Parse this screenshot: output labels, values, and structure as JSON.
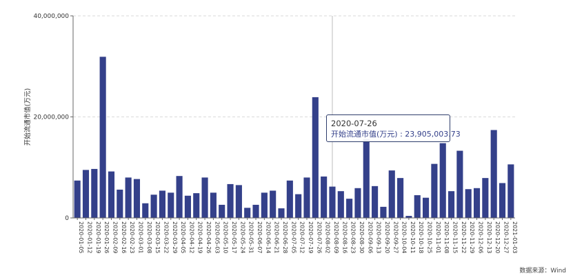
{
  "chart_data": {
    "type": "bar",
    "ylabel": "开始流通市值(万元)",
    "ylim": [
      0,
      40000000
    ],
    "yticks": [
      "0",
      "20,000,000",
      "40,000,000"
    ],
    "ytick_values": [
      0,
      20000000,
      40000000
    ],
    "bar_color": "#34408a",
    "grid": true,
    "highlight_index": 30,
    "categories": [
      "2020-01-05",
      "2020-01-12",
      "2020-01-19",
      "2020-01-26",
      "2020-02-09",
      "2020-02-16",
      "2020-02-23",
      "2020-03-01",
      "2020-03-08",
      "2020-03-15",
      "2020-03-22",
      "2020-03-29",
      "2020-04-05",
      "2020-04-12",
      "2020-04-19",
      "2020-04-26",
      "2020-05-03",
      "2020-05-10",
      "2020-05-17",
      "2020-05-24",
      "2020-05-31",
      "2020-06-07",
      "2020-06-14",
      "2020-06-21",
      "2020-06-28",
      "2020-07-05",
      "2020-07-12",
      "2020-07-19",
      "2020-07-26",
      "2020-08-02",
      "2020-08-09",
      "2020-08-16",
      "2020-08-23",
      "2020-08-30",
      "2020-09-06",
      "2020-09-13",
      "2020-09-20",
      "2020-09-27",
      "2020-10-04",
      "2020-10-11",
      "2020-10-18",
      "2020-10-25",
      "2020-11-01",
      "2020-11-08",
      "2020-11-15",
      "2020-11-22",
      "2020-11-29",
      "2020-12-06",
      "2020-12-13",
      "2020-12-20",
      "2020-12-27",
      "2021-01-03"
    ],
    "categories_display_note": "",
    "values": [
      7400000,
      9500000,
      9700000,
      31900000,
      9200000,
      5600000,
      8000000,
      7700000,
      2900000,
      4600000,
      5400000,
      5000000,
      8300000,
      4400000,
      4900000,
      8000000,
      5000000,
      2600000,
      6700000,
      6500000,
      2000000,
      2600000,
      5000000,
      5400000,
      1900000,
      7400000,
      4700000,
      8000000,
      23905003.73,
      8200000,
      6200000,
      5300000,
      3800000,
      5900000,
      15600000,
      6300000,
      2200000,
      9400000,
      7900000,
      400000,
      4500000,
      4000000,
      10700000,
      14800000,
      5300000,
      13300000,
      5700000,
      5900000,
      7900000,
      17400000,
      6900000,
      10600000
    ]
  },
  "tooltip": {
    "date": "2020-07-26",
    "label": "开始流通市值(万元) : 23,905,003.73"
  },
  "source": "数据来源：Wind"
}
